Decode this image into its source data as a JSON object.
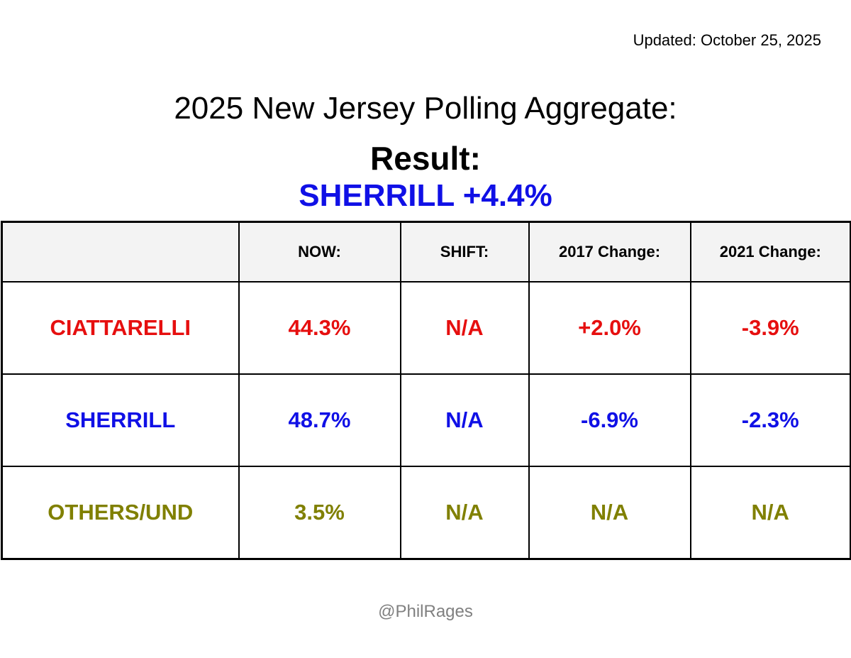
{
  "updated": "Updated: October 25, 2025",
  "title": "2025 New Jersey Polling Aggregate:",
  "result_label": "Result:",
  "result_value": "SHERRILL +4.4%",
  "result_color": "#1010e6",
  "footer": "@PhilRages",
  "colors": {
    "ciattarelli": "#e60f0f",
    "sherrill": "#1010e6",
    "others": "#808000",
    "header_bg": "#f3f3f3"
  },
  "chart_data": {
    "type": "table",
    "columns": [
      "",
      "NOW:",
      "SHIFT:",
      "2017 Change:",
      "2021 Change:"
    ],
    "rows": [
      {
        "candidate": "CIATTARELLI",
        "now": "44.3%",
        "shift": "N/A",
        "change_2017": "+2.0%",
        "change_2021": "-3.9%"
      },
      {
        "candidate": "SHERRILL",
        "now": "48.7%",
        "shift": "N/A",
        "change_2017": "-6.9%",
        "change_2021": "-2.3%"
      },
      {
        "candidate": "OTHERS/UND",
        "now": "3.5%",
        "shift": "N/A",
        "change_2017": "N/A",
        "change_2021": "N/A"
      }
    ]
  }
}
